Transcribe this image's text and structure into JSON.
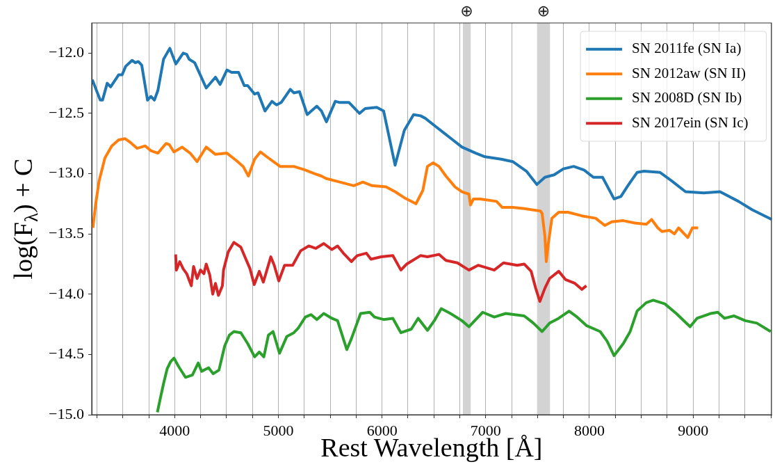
{
  "chart_data": {
    "type": "line",
    "xlabel": "Rest Wavelength [Å]",
    "ylabel": "log(F$_{λ}$) + C",
    "xlim": [
      3200,
      9760
    ],
    "ylim": [
      -15,
      -11.75
    ],
    "xticks": [
      {
        "value": 3250,
        "label": null
      },
      {
        "value": 3500,
        "label": null
      },
      {
        "value": 3750,
        "label": null
      },
      4000,
      {
        "value": 4250,
        "label": null
      },
      {
        "value": 4500,
        "label": null
      },
      {
        "value": 4750,
        "label": null
      },
      5000,
      {
        "value": 5250,
        "label": null
      },
      {
        "value": 5500,
        "label": null
      },
      {
        "value": 5750,
        "label": null
      },
      6000,
      {
        "value": 6250,
        "label": null
      },
      {
        "value": 6500,
        "label": null
      },
      {
        "value": 6750,
        "label": null
      },
      7000,
      {
        "value": 7250,
        "label": null
      },
      {
        "value": 7500,
        "label": null
      },
      {
        "value": 7750,
        "label": null
      },
      8000,
      {
        "value": 8250,
        "label": null
      },
      {
        "value": 8500,
        "label": null
      },
      {
        "value": 8750,
        "label": null
      },
      9000,
      {
        "value": 9250,
        "label": null
      },
      {
        "value": 9500,
        "label": null
      },
      {
        "value": 9750,
        "label": null
      }
    ],
    "yticks": [
      {
        "value": -15,
        "label": "−15.0"
      },
      {
        "value": -14.5,
        "label": "−14.5"
      },
      {
        "value": -14,
        "label": "−14.0"
      },
      {
        "value": -13.5,
        "label": "−13.5"
      },
      {
        "value": -13,
        "label": "−13.0"
      },
      {
        "value": -12.5,
        "label": "−12.5"
      },
      {
        "value": -12,
        "label": "−12.0"
      }
    ],
    "grid": "x",
    "legend": "top right",
    "bands": [
      {
        "axis": "x",
        "from": 6780,
        "to": 6855,
        "label": "⊕",
        "color": "#d3d3d3"
      },
      {
        "axis": "x",
        "from": 7495,
        "to": 7620,
        "label": "⊕",
        "color": "#d3d3d3"
      }
    ],
    "series": [
      {
        "name": "SN 2011fe (SN Ia)",
        "color": "#1f77b4",
        "x": [
          3205,
          3282,
          3304,
          3349,
          3382,
          3460,
          3493,
          3527,
          3589,
          3620,
          3649,
          3682,
          3738,
          3771,
          3804,
          3838,
          3893,
          3953,
          4011,
          4082,
          4116,
          4138,
          4193,
          4304,
          4393,
          4438,
          4504,
          4549,
          4616,
          4671,
          4704,
          4771,
          4804,
          4871,
          4938,
          4982,
          5027,
          5115,
          5149,
          5204,
          5278,
          5371,
          5415,
          5464,
          5549,
          5593,
          5682,
          5782,
          5837,
          5949,
          6015,
          6126,
          6215,
          6304,
          6371,
          6416,
          6504,
          6593,
          6682,
          6771,
          6904,
          6993,
          7149,
          7260,
          7393,
          7493,
          7571,
          7660,
          7749,
          7849,
          7949,
          8038,
          8127,
          8238,
          8304,
          8371,
          8460,
          8527,
          8682,
          8793,
          8927,
          9104,
          9260,
          9438,
          9571,
          9760
        ],
        "values": [
          -12.22,
          -12.39,
          -12.39,
          -12.25,
          -12.28,
          -12.18,
          -12.18,
          -12.11,
          -12.06,
          -12.08,
          -12.07,
          -12.1,
          -12.39,
          -12.36,
          -12.39,
          -12.31,
          -12.05,
          -11.96,
          -12.09,
          -12.0,
          -12.01,
          -12.05,
          -12.08,
          -12.29,
          -12.2,
          -12.26,
          -12.14,
          -12.16,
          -12.16,
          -12.27,
          -12.27,
          -12.34,
          -12.33,
          -12.48,
          -12.4,
          -12.43,
          -12.41,
          -12.3,
          -12.33,
          -12.32,
          -12.51,
          -12.44,
          -12.48,
          -12.57,
          -12.4,
          -12.41,
          -12.41,
          -12.5,
          -12.46,
          -12.45,
          -12.48,
          -12.93,
          -12.64,
          -12.51,
          -12.52,
          -12.54,
          -12.6,
          -12.66,
          -12.72,
          -12.78,
          -12.83,
          -12.86,
          -12.88,
          -12.9,
          -12.98,
          -13.09,
          -13.03,
          -13.01,
          -12.96,
          -12.94,
          -12.97,
          -13.03,
          -13.03,
          -13.21,
          -13.19,
          -13.1,
          -12.99,
          -12.98,
          -12.99,
          -13.06,
          -13.15,
          -13.16,
          -13.15,
          -13.23,
          -13.3,
          -13.38
        ]
      },
      {
        "name": "SN 2012aw (SN II)",
        "color": "#ff7f0e",
        "x": [
          3211,
          3238,
          3271,
          3327,
          3393,
          3460,
          3522,
          3571,
          3638,
          3716,
          3771,
          3838,
          3916,
          3949,
          3993,
          4071,
          4149,
          4216,
          4304,
          4393,
          4504,
          4593,
          4660,
          4711,
          4771,
          4827,
          4904,
          5016,
          5149,
          5260,
          5349,
          5415,
          5460,
          5593,
          5727,
          5815,
          5904,
          6038,
          6126,
          6215,
          6327,
          6393,
          6438,
          6493,
          6549,
          6616,
          6704,
          6771,
          6838,
          6853,
          6882,
          6949,
          7104,
          7160,
          7260,
          7371,
          7527,
          7544,
          7571,
          7584,
          7604,
          7638,
          7704,
          7793,
          7927,
          8060,
          8149,
          8216,
          8327,
          8438,
          8549,
          8600,
          8660,
          8700,
          8771,
          8820,
          8860,
          8949,
          8993,
          9049
        ],
        "values": [
          -13.45,
          -13.25,
          -13.06,
          -12.87,
          -12.77,
          -12.72,
          -12.71,
          -12.74,
          -12.79,
          -12.77,
          -12.81,
          -12.83,
          -12.75,
          -12.76,
          -12.82,
          -12.78,
          -12.83,
          -12.9,
          -12.78,
          -12.84,
          -12.83,
          -12.89,
          -12.94,
          -13.02,
          -12.88,
          -12.82,
          -12.87,
          -12.94,
          -12.94,
          -12.97,
          -13.0,
          -13.02,
          -13.04,
          -13.07,
          -13.1,
          -13.07,
          -13.1,
          -13.11,
          -13.15,
          -13.2,
          -13.25,
          -13.14,
          -12.94,
          -12.91,
          -12.94,
          -13.02,
          -13.11,
          -13.15,
          -13.17,
          -13.26,
          -13.21,
          -13.21,
          -13.23,
          -13.28,
          -13.28,
          -13.29,
          -13.31,
          -13.33,
          -13.52,
          -13.73,
          -13.58,
          -13.37,
          -13.32,
          -13.32,
          -13.35,
          -13.37,
          -13.43,
          -13.4,
          -13.39,
          -13.41,
          -13.42,
          -13.38,
          -13.45,
          -13.48,
          -13.47,
          -13.5,
          -13.45,
          -13.53,
          -13.45,
          -13.45
        ]
      },
      {
        "name": "SN 2008D (SN Ib)",
        "color": "#2ca02c",
        "x": [
          3833,
          3860,
          3893,
          3927,
          3960,
          3993,
          4038,
          4104,
          4171,
          4227,
          4260,
          4327,
          4371,
          4427,
          4482,
          4527,
          4571,
          4638,
          4704,
          4771,
          4816,
          4860,
          4904,
          4949,
          5011,
          5082,
          5149,
          5193,
          5260,
          5316,
          5371,
          5438,
          5516,
          5571,
          5660,
          5704,
          5793,
          5882,
          5927,
          6015,
          6104,
          6182,
          6282,
          6349,
          6438,
          6504,
          6571,
          6660,
          6771,
          6838,
          6971,
          7082,
          7193,
          7371,
          7460,
          7544,
          7616,
          7704,
          7804,
          7882,
          7971,
          8104,
          8171,
          8238,
          8327,
          8393,
          8460,
          8549,
          8616,
          8727,
          8838,
          8971,
          9038,
          9171,
          9238,
          9304,
          9393,
          9504,
          9615,
          9749
        ],
        "values": [
          -14.98,
          -14.87,
          -14.74,
          -14.62,
          -14.56,
          -14.53,
          -14.6,
          -14.69,
          -14.67,
          -14.57,
          -14.64,
          -14.61,
          -14.66,
          -14.63,
          -14.43,
          -14.34,
          -14.31,
          -14.32,
          -14.41,
          -14.52,
          -14.48,
          -14.52,
          -14.34,
          -14.31,
          -14.49,
          -14.35,
          -14.32,
          -14.28,
          -14.19,
          -14.17,
          -14.21,
          -14.16,
          -14.2,
          -14.22,
          -14.46,
          -14.37,
          -14.16,
          -14.15,
          -14.19,
          -14.21,
          -14.2,
          -14.32,
          -14.29,
          -14.2,
          -14.3,
          -14.22,
          -14.12,
          -14.16,
          -14.22,
          -14.27,
          -14.15,
          -14.19,
          -14.16,
          -14.18,
          -14.24,
          -14.31,
          -14.24,
          -14.2,
          -14.14,
          -14.19,
          -14.26,
          -14.31,
          -14.39,
          -14.51,
          -14.41,
          -14.31,
          -14.14,
          -14.07,
          -14.05,
          -14.08,
          -14.16,
          -14.27,
          -14.2,
          -14.16,
          -14.15,
          -14.2,
          -14.18,
          -14.22,
          -14.24,
          -14.31
        ]
      },
      {
        "name": "SN 2017ein (SN Ic)",
        "color": "#d62728",
        "x": [
          4009,
          4016,
          4049,
          4082,
          4116,
          4160,
          4182,
          4216,
          4249,
          4282,
          4304,
          4338,
          4367,
          4393,
          4422,
          4460,
          4471,
          4516,
          4571,
          4638,
          4682,
          4727,
          4767,
          4816,
          4855,
          4927,
          4960,
          5004,
          5060,
          5138,
          5215,
          5293,
          5360,
          5438,
          5516,
          5571,
          5627,
          5704,
          5760,
          5849,
          5893,
          5993,
          6104,
          6182,
          6238,
          6371,
          6438,
          6549,
          6616,
          6727,
          6838,
          6927,
          7082,
          7171,
          7304,
          7371,
          7438,
          7482,
          7522,
          7571,
          7616,
          7704,
          7771,
          7860,
          7927,
          7971
        ],
        "values": [
          -13.67,
          -13.8,
          -13.73,
          -13.79,
          -13.83,
          -13.93,
          -13.77,
          -13.87,
          -13.8,
          -13.83,
          -13.75,
          -13.84,
          -14.0,
          -13.91,
          -14.01,
          -13.93,
          -13.8,
          -13.65,
          -13.57,
          -13.61,
          -13.7,
          -13.79,
          -13.92,
          -13.81,
          -13.9,
          -13.69,
          -13.76,
          -13.89,
          -13.76,
          -13.76,
          -13.64,
          -13.6,
          -13.62,
          -13.58,
          -13.63,
          -13.6,
          -13.66,
          -13.73,
          -13.68,
          -13.66,
          -13.71,
          -13.69,
          -13.68,
          -13.8,
          -13.75,
          -13.68,
          -13.69,
          -13.67,
          -13.72,
          -13.74,
          -13.8,
          -13.76,
          -13.8,
          -13.74,
          -13.76,
          -13.75,
          -13.81,
          -13.95,
          -14.06,
          -13.95,
          -13.87,
          -13.81,
          -13.88,
          -13.91,
          -13.96,
          -13.93
        ]
      }
    ]
  }
}
